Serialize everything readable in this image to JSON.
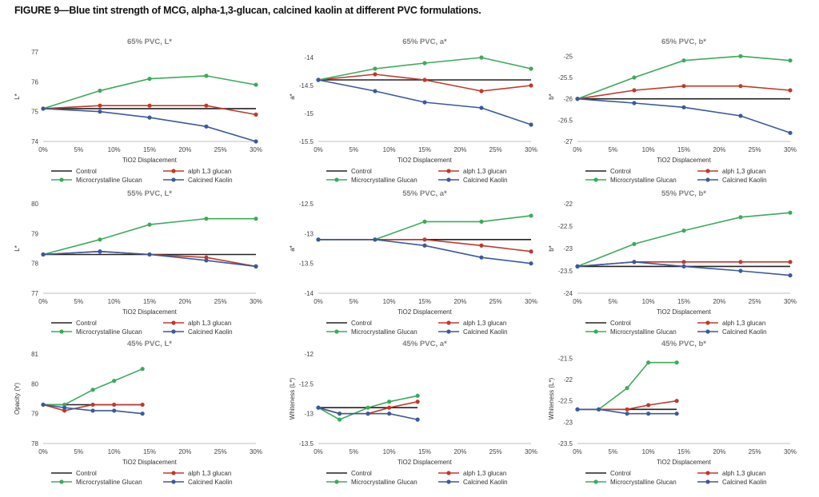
{
  "figure_title": "FIGURE 9—Blue tint strength of MCG, alpha-1,3-glucan, calcined kaolin at different PVC formulations.",
  "colors": {
    "Control": "#222222",
    "alph 1,3 glucan": "#c0392b",
    "Microcrystalline Glucan": "#3bab5a",
    "Calcined Kaolin": "#3a5a9c",
    "axis": "#bfbfbf"
  },
  "chart_data": [
    {
      "type": "line",
      "title": "65% PVC, L*",
      "xlabel": "TiO2 Displacement",
      "ylabel": "L*",
      "yticks": [
        "74",
        "75",
        "76",
        "77"
      ],
      "ylim": [
        74,
        77
      ],
      "xticks": [
        "0%",
        "5%",
        "10%",
        "15%",
        "20%",
        "25%",
        "30%"
      ],
      "xlim": [
        0,
        30
      ],
      "legend": [
        "Control",
        "alph 1,3 glucan",
        "Microcrystalline Glucan",
        "Calcined Kaolin"
      ],
      "series": [
        {
          "name": "Control",
          "x": [
            0,
            30
          ],
          "values": [
            75.1,
            75.1
          ]
        },
        {
          "name": "alph 1,3 glucan",
          "x": [
            0,
            8,
            15,
            23,
            30
          ],
          "values": [
            75.1,
            75.2,
            75.2,
            75.2,
            74.9
          ]
        },
        {
          "name": "Microcrystalline Glucan",
          "x": [
            0,
            8,
            15,
            23,
            30
          ],
          "values": [
            75.1,
            75.7,
            76.1,
            76.2,
            75.9
          ]
        },
        {
          "name": "Calcined Kaolin",
          "x": [
            0,
            8,
            15,
            23,
            30
          ],
          "values": [
            75.1,
            75.0,
            74.8,
            74.5,
            74.0
          ]
        }
      ]
    },
    {
      "type": "line",
      "title": "65% PVC, a*",
      "xlabel": "TiO2 Displacement",
      "ylabel": "a*",
      "yticks": [
        "-15.5",
        "-15",
        "-14.5",
        "-14"
      ],
      "ylim": [
        -15.5,
        -13.9
      ],
      "xticks": [
        "0%",
        "5%",
        "10%",
        "15%",
        "20%",
        "25%",
        "30%"
      ],
      "xlim": [
        0,
        30
      ],
      "legend": [
        "Control",
        "alph 1,3 glucan",
        "Microcrystalline Glucan",
        "Calcined Kaolin"
      ],
      "series": [
        {
          "name": "Control",
          "x": [
            0,
            30
          ],
          "values": [
            -14.4,
            -14.4
          ]
        },
        {
          "name": "alph 1,3 glucan",
          "x": [
            0,
            8,
            15,
            23,
            30
          ],
          "values": [
            -14.4,
            -14.3,
            -14.4,
            -14.6,
            -14.5
          ]
        },
        {
          "name": "Microcrystalline Glucan",
          "x": [
            0,
            8,
            15,
            23,
            30
          ],
          "values": [
            -14.4,
            -14.2,
            -14.1,
            -14.0,
            -14.2
          ]
        },
        {
          "name": "Calcined Kaolin",
          "x": [
            0,
            8,
            15,
            23,
            30
          ],
          "values": [
            -14.4,
            -14.6,
            -14.8,
            -14.9,
            -15.2
          ]
        }
      ]
    },
    {
      "type": "line",
      "title": "65% PVC, b*",
      "xlabel": "TiO2 Displacement",
      "ylabel": "b*",
      "yticks": [
        "-27",
        "-26.5",
        "-26",
        "-25.5",
        "-25"
      ],
      "ylim": [
        -27,
        -24.9
      ],
      "xticks": [
        "0%",
        "5%",
        "10%",
        "15%",
        "20%",
        "25%",
        "30%"
      ],
      "xlim": [
        0,
        30
      ],
      "legend": [
        "Control",
        "alph 1,3 glucan",
        "Microcrystalline Glucan",
        "Calcined Kaolin"
      ],
      "series": [
        {
          "name": "Control",
          "x": [
            0,
            30
          ],
          "values": [
            -26.0,
            -26.0
          ]
        },
        {
          "name": "alph 1,3 glucan",
          "x": [
            0,
            8,
            15,
            23,
            30
          ],
          "values": [
            -26.0,
            -25.8,
            -25.7,
            -25.7,
            -25.8
          ]
        },
        {
          "name": "Microcrystalline Glucan",
          "x": [
            0,
            8,
            15,
            23,
            30
          ],
          "values": [
            -26.0,
            -25.5,
            -25.1,
            -25.0,
            -25.1
          ]
        },
        {
          "name": "Calcined Kaolin",
          "x": [
            0,
            8,
            15,
            23,
            30
          ],
          "values": [
            -26.0,
            -26.1,
            -26.2,
            -26.4,
            -26.8
          ]
        }
      ]
    },
    {
      "type": "line",
      "title": "55% PVC, L*",
      "xlabel": "TiO2 Displacement",
      "ylabel": "L*",
      "yticks": [
        "77",
        "78",
        "79",
        "80"
      ],
      "ylim": [
        77,
        80
      ],
      "xticks": [
        "0%",
        "5%",
        "10%",
        "15%",
        "20%",
        "25%",
        "30%"
      ],
      "xlim": [
        0,
        30
      ],
      "legend": [
        "Control",
        "alph 1,3 glucan",
        "Microcrystalline Glucan",
        "Calcined Kaolin"
      ],
      "series": [
        {
          "name": "Control",
          "x": [
            0,
            30
          ],
          "values": [
            78.3,
            78.3
          ]
        },
        {
          "name": "alph 1,3 glucan",
          "x": [
            0,
            8,
            15,
            23,
            30
          ],
          "values": [
            78.3,
            78.4,
            78.3,
            78.2,
            77.9
          ]
        },
        {
          "name": "Microcrystalline Glucan",
          "x": [
            0,
            8,
            15,
            23,
            30
          ],
          "values": [
            78.3,
            78.8,
            79.3,
            79.5,
            79.5
          ]
        },
        {
          "name": "Calcined Kaolin",
          "x": [
            0,
            8,
            15,
            23,
            30
          ],
          "values": [
            78.3,
            78.4,
            78.3,
            78.1,
            77.9
          ]
        }
      ]
    },
    {
      "type": "line",
      "title": "55% PVC, a*",
      "xlabel": "TiO2 Displacement",
      "ylabel": "a*",
      "yticks": [
        "-14",
        "-13.5",
        "-13",
        "-12.5"
      ],
      "ylim": [
        -14,
        -12.5
      ],
      "xticks": [
        "0%",
        "5%",
        "10%",
        "15%",
        "20%",
        "25%",
        "30%"
      ],
      "xlim": [
        0,
        30
      ],
      "legend": [
        "Control",
        "alph 1,3 glucan",
        "Microcrystalline Glucan",
        "Calcined Kaolin"
      ],
      "series": [
        {
          "name": "Control",
          "x": [
            0,
            30
          ],
          "values": [
            -13.1,
            -13.1
          ]
        },
        {
          "name": "alph 1,3 glucan",
          "x": [
            0,
            8,
            15,
            23,
            30
          ],
          "values": [
            -13.1,
            -13.1,
            -13.1,
            -13.2,
            -13.3
          ]
        },
        {
          "name": "Microcrystalline Glucan",
          "x": [
            0,
            8,
            15,
            23,
            30
          ],
          "values": [
            -13.1,
            -13.1,
            -12.8,
            -12.8,
            -12.7
          ]
        },
        {
          "name": "Calcined Kaolin",
          "x": [
            0,
            8,
            15,
            23,
            30
          ],
          "values": [
            -13.1,
            -13.1,
            -13.2,
            -13.4,
            -13.5
          ]
        }
      ]
    },
    {
      "type": "line",
      "title": "55% PVC, b*",
      "xlabel": "TiO2 Displacement",
      "ylabel": "b*",
      "yticks": [
        "-24",
        "-23.5",
        "-23",
        "-22.5",
        "-22"
      ],
      "ylim": [
        -24,
        -22
      ],
      "xticks": [
        "0%",
        "5%",
        "10%",
        "15%",
        "20%",
        "25%",
        "30%"
      ],
      "xlim": [
        0,
        30
      ],
      "legend": [
        "Control",
        "alph 1,3 glucan",
        "Microcrystalline Glucan",
        "Calcined Kaolin"
      ],
      "series": [
        {
          "name": "Control",
          "x": [
            0,
            30
          ],
          "values": [
            -23.4,
            -23.4
          ]
        },
        {
          "name": "alph 1,3 glucan",
          "x": [
            0,
            8,
            15,
            23,
            30
          ],
          "values": [
            -23.4,
            -23.3,
            -23.3,
            -23.3,
            -23.3
          ]
        },
        {
          "name": "Microcrystalline Glucan",
          "x": [
            0,
            8,
            15,
            23,
            30
          ],
          "values": [
            -23.4,
            -22.9,
            -22.6,
            -22.3,
            -22.2
          ]
        },
        {
          "name": "Calcined Kaolin",
          "x": [
            0,
            8,
            15,
            23,
            30
          ],
          "values": [
            -23.4,
            -23.3,
            -23.4,
            -23.5,
            -23.6
          ]
        }
      ]
    },
    {
      "type": "line",
      "title": "45% PVC, L*",
      "xlabel": "TiO2 Displacement",
      "ylabel": "Opacity (Y)",
      "yticks": [
        "78",
        "79",
        "80",
        "81"
      ],
      "ylim": [
        78,
        81
      ],
      "xticks": [
        "0%",
        "5%",
        "10%",
        "15%",
        "20%",
        "25%",
        "30%"
      ],
      "xlim": [
        0,
        30
      ],
      "legend": [
        "Control",
        "alph 1,3 glucan",
        "Microcrystalline Glucan",
        "Calcined Kaolin"
      ],
      "series": [
        {
          "name": "Control",
          "x": [
            0,
            14
          ],
          "values": [
            79.3,
            79.3
          ]
        },
        {
          "name": "alph 1,3 glucan",
          "x": [
            0,
            3,
            7,
            10,
            14
          ],
          "values": [
            79.3,
            79.1,
            79.3,
            79.3,
            79.3
          ]
        },
        {
          "name": "Microcrystalline Glucan",
          "x": [
            0,
            3,
            7,
            10,
            14
          ],
          "values": [
            79.3,
            79.3,
            79.8,
            80.1,
            80.5
          ]
        },
        {
          "name": "Calcined Kaolin",
          "x": [
            0,
            3,
            7,
            10,
            14
          ],
          "values": [
            79.3,
            79.2,
            79.1,
            79.1,
            79.0
          ]
        }
      ]
    },
    {
      "type": "line",
      "title": "45% PVC, a*",
      "xlabel": "TiO2 Displacement",
      "ylabel": "Whiteness (L*)",
      "yticks": [
        "-13.5",
        "-13",
        "-12.5",
        "-12"
      ],
      "ylim": [
        -13.5,
        -12
      ],
      "xticks": [
        "0%",
        "5%",
        "10%",
        "15%",
        "20%",
        "25%",
        "30%"
      ],
      "xlim": [
        0,
        30
      ],
      "legend": [
        "Control",
        "alph 1,3 glucan",
        "Microcrystalline Glucan",
        "Calcined Kaolin"
      ],
      "series": [
        {
          "name": "Control",
          "x": [
            0,
            14
          ],
          "values": [
            -12.9,
            -12.9
          ]
        },
        {
          "name": "alph 1,3 glucan",
          "x": [
            0,
            3,
            7,
            10,
            14
          ],
          "values": [
            -12.9,
            -13.0,
            -13.0,
            -12.9,
            -12.8
          ]
        },
        {
          "name": "Microcrystalline Glucan",
          "x": [
            0,
            3,
            7,
            10,
            14
          ],
          "values": [
            -12.9,
            -13.1,
            -12.9,
            -12.8,
            -12.7
          ]
        },
        {
          "name": "Calcined Kaolin",
          "x": [
            0,
            3,
            7,
            10,
            14
          ],
          "values": [
            -12.9,
            -13.0,
            -13.0,
            -13.0,
            -13.1
          ]
        }
      ]
    },
    {
      "type": "line",
      "title": "45% PVC, b*",
      "xlabel": "TiO2 Displacement",
      "ylabel": "Whiteness (L*)",
      "yticks": [
        "-23.5",
        "-23",
        "-22.5",
        "-22",
        "-21.5"
      ],
      "ylim": [
        -23.5,
        -21.4
      ],
      "xticks": [
        "0%",
        "5%",
        "10%",
        "15%",
        "20%",
        "25%",
        "30%"
      ],
      "xlim": [
        0,
        30
      ],
      "legend": [
        "Control",
        "alph 1,3 glucan",
        "Microcrystalline Glucan",
        "Calcined Kaolin"
      ],
      "series": [
        {
          "name": "Control",
          "x": [
            0,
            14
          ],
          "values": [
            -22.7,
            -22.7
          ]
        },
        {
          "name": "alph 1,3 glucan",
          "x": [
            0,
            3,
            7,
            10,
            14
          ],
          "values": [
            -22.7,
            -22.7,
            -22.7,
            -22.6,
            -22.5
          ]
        },
        {
          "name": "Microcrystalline Glucan",
          "x": [
            0,
            3,
            7,
            10,
            14
          ],
          "values": [
            -22.7,
            -22.7,
            -22.2,
            -21.6,
            -21.6
          ]
        },
        {
          "name": "Calcined Kaolin",
          "x": [
            0,
            3,
            7,
            10,
            14
          ],
          "values": [
            -22.7,
            -22.7,
            -22.8,
            -22.8,
            -22.8
          ]
        }
      ]
    }
  ]
}
